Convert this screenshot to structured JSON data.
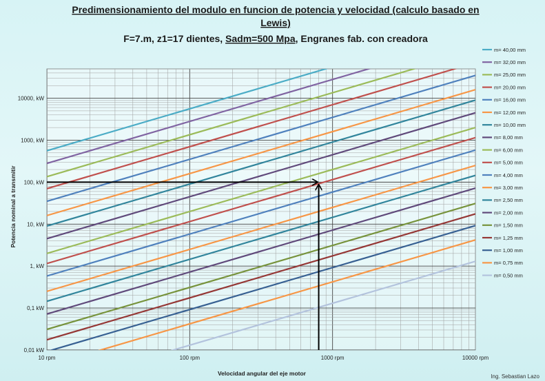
{
  "chart_data": {
    "type": "line",
    "title_line1": "Predimensionamiento del modulo en funcion de potencia y velocidad (calculo basado en",
    "title_line2": "Lewis)",
    "subtitle_parts": [
      "F=7.m, z1=17 dientes, ",
      "Sadm=500 Mpa",
      ", Engranes fab. con creadora"
    ],
    "xlabel": "Velocidad angular del eje motor",
    "ylabel": "Potencia nominal a transmitir",
    "x_scale": "log",
    "y_scale": "log",
    "xlim": [
      10,
      10000
    ],
    "ylim": [
      0.01,
      50000
    ],
    "x_ticks": [
      {
        "value": 10,
        "label": "10 rpm"
      },
      {
        "value": 100,
        "label": "100 rpm"
      },
      {
        "value": 1000,
        "label": "1000 rpm"
      },
      {
        "value": 10000,
        "label": "10000 rpm"
      }
    ],
    "y_ticks": [
      {
        "value": 0.01,
        "label": "0,01 kW"
      },
      {
        "value": 0.1,
        "label": "0,1 kW"
      },
      {
        "value": 1,
        "label": "1, kW"
      },
      {
        "value": 10,
        "label": "10, kW"
      },
      {
        "value": 100,
        "label": "100, kW"
      },
      {
        "value": 1000,
        "label": "1000, kW"
      },
      {
        "value": 10000,
        "label": "10000, kW"
      }
    ],
    "grid": true,
    "legend_position": "right",
    "series": [
      {
        "name": "m= 40,00 mm",
        "color": "#4bacc6",
        "power_at_10rpm": 560
      },
      {
        "name": "m= 32,00 mm",
        "color": "#8064a2",
        "power_at_10rpm": 280
      },
      {
        "name": "m= 25,00 mm",
        "color": "#9bbb59",
        "power_at_10rpm": 135
      },
      {
        "name": "m= 20,00 mm",
        "color": "#c0504d",
        "power_at_10rpm": 70
      },
      {
        "name": "m= 16,00 mm",
        "color": "#4f81bd",
        "power_at_10rpm": 35
      },
      {
        "name": "m= 12,00 mm",
        "color": "#f79646",
        "power_at_10rpm": 16
      },
      {
        "name": "m= 10,00 mm",
        "color": "#31859c",
        "power_at_10rpm": 9
      },
      {
        "name": "m= 8,00 mm",
        "color": "#604a7b",
        "power_at_10rpm": 4.5
      },
      {
        "name": "m= 6,00 mm",
        "color": "#9bbb59",
        "power_at_10rpm": 2
      },
      {
        "name": "m= 5,00 mm",
        "color": "#c0504d",
        "power_at_10rpm": 1.15
      },
      {
        "name": "m= 4,00 mm",
        "color": "#4f81bd",
        "power_at_10rpm": 0.58
      },
      {
        "name": "m= 3,00 mm",
        "color": "#f79646",
        "power_at_10rpm": 0.25
      },
      {
        "name": "m= 2,50 mm",
        "color": "#31859c",
        "power_at_10rpm": 0.145
      },
      {
        "name": "m= 2,00 mm",
        "color": "#604a7b",
        "power_at_10rpm": 0.072
      },
      {
        "name": "m= 1,50 mm",
        "color": "#77933c",
        "power_at_10rpm": 0.031
      },
      {
        "name": "m= 1,25 mm",
        "color": "#953735",
        "power_at_10rpm": 0.0175
      },
      {
        "name": "m= 1,00 mm",
        "color": "#376092",
        "power_at_10rpm": 0.0092
      },
      {
        "name": "m= 0,75 mm",
        "color": "#f79646",
        "power_at_10rpm": 0.0042
      },
      {
        "name": "m= 0,50 mm",
        "color": "#b3c3dd",
        "power_at_10rpm": 0.0013
      }
    ],
    "annotation": {
      "example_speed_rpm": 800,
      "example_power_kw": 100
    },
    "credit": "Ing. Sebastian Lazo"
  }
}
